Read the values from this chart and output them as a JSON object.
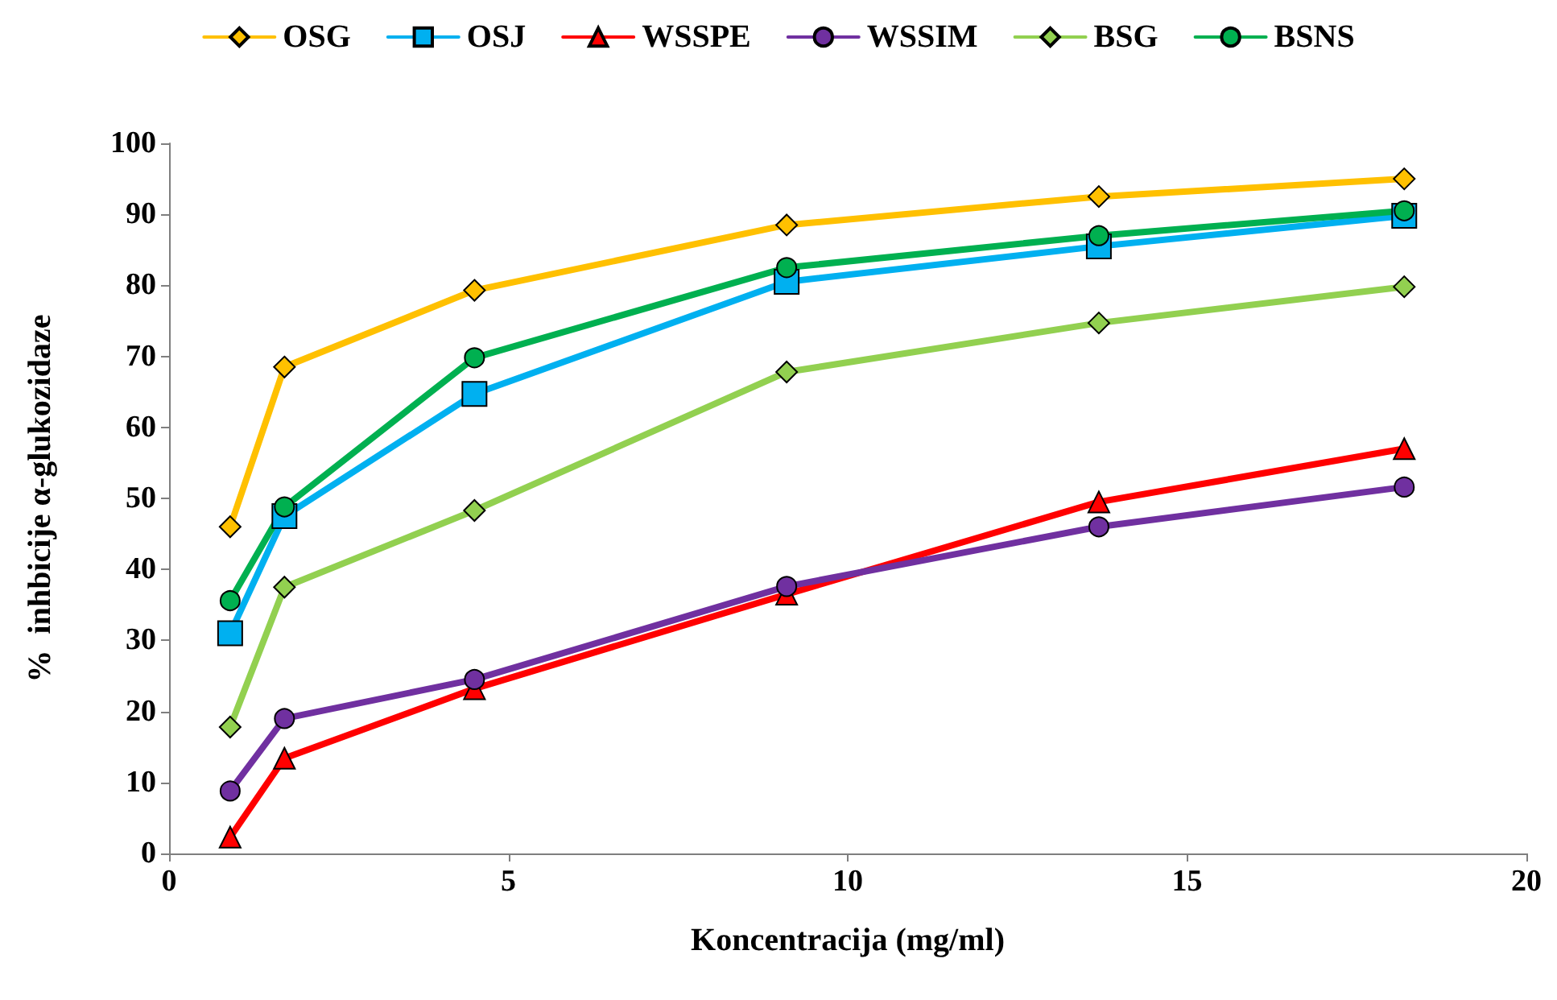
{
  "chart_data": {
    "type": "line",
    "xlabel": "Koncentracija (mg/ml)",
    "ylabel": "%  inhbicije α-glukozidaze",
    "x": [
      0.9,
      1.7,
      4.5,
      9.1,
      13.7,
      18.2
    ],
    "series": [
      {
        "name": "OSG",
        "color": "#ffc000",
        "marker": "diamond",
        "values": [
          46,
          68.5,
          79.3,
          88.5,
          92.5,
          95
        ]
      },
      {
        "name": "OSJ",
        "color": "#00b0f0",
        "marker": "square",
        "values": [
          31,
          47.5,
          64.7,
          80.5,
          85.5,
          89.8
        ]
      },
      {
        "name": "WSSPE",
        "color": "#ff0000",
        "marker": "triangle",
        "values": [
          2.3,
          13.4,
          23.2,
          36.5,
          49.5,
          57
        ]
      },
      {
        "name": "WSSIM",
        "color": "#7030a0",
        "marker": "circle",
        "values": [
          8.8,
          19,
          24.5,
          37.6,
          46,
          51.6
        ]
      },
      {
        "name": "BSG",
        "color": "#92d050",
        "marker": "diamond",
        "values": [
          17.8,
          37.5,
          48.3,
          67.8,
          74.7,
          79.8
        ]
      },
      {
        "name": "BSNS",
        "color": "#00b050",
        "marker": "circle",
        "values": [
          35.6,
          48.8,
          69.8,
          82.5,
          87,
          90.5
        ]
      }
    ],
    "xlim": [
      0,
      20
    ],
    "xticks": [
      0,
      5,
      10,
      15,
      20
    ],
    "ylim": [
      0,
      100
    ],
    "yticks": [
      0,
      10,
      20,
      30,
      40,
      50,
      60,
      70,
      80,
      90,
      100
    ],
    "grid": false,
    "legend": "top",
    "line_style": "solid"
  }
}
